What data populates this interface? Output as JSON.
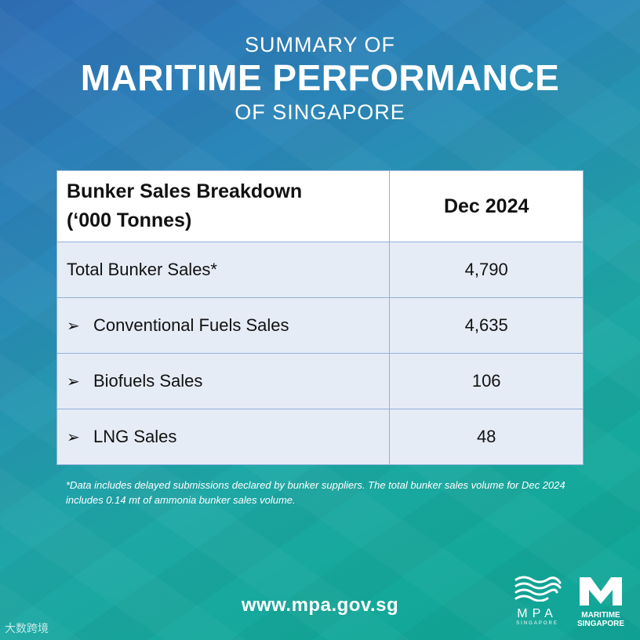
{
  "header": {
    "line1": "SUMMARY OF",
    "line2": "MARITIME PERFORMANCE",
    "line3": "OF SINGAPORE"
  },
  "table": {
    "header_label_line1": "Bunker Sales Breakdown",
    "header_label_line2": "(‘000 Tonnes)",
    "header_period": "Dec 2024",
    "rows": [
      {
        "label": "Total Bunker Sales*",
        "value": "4,790"
      },
      {
        "label": "Conventional Fuels Sales",
        "value": "4,635"
      },
      {
        "label": "Biofuels Sales",
        "value": "106"
      },
      {
        "label": "LNG Sales",
        "value": "48"
      }
    ]
  },
  "footnote": "*Data includes delayed submissions declared by bunker suppliers. The total bunker sales volume for Dec 2024 includes 0.14 mt of ammonia bunker sales volume.",
  "footer": {
    "url": "www.mpa.gov.sg",
    "mpa_logo_text": "MPA",
    "mpa_logo_sub": "SINGAPORE",
    "ms_logo_line1": "MARITIME",
    "ms_logo_line2": "SINGAPORE",
    "watermark": "大数跨境"
  },
  "colors": {
    "bg_top": "#2f6fb8",
    "bg_bottom": "#11a597",
    "table_border": "#8fb0d8",
    "row_bg": "#e6ecf6"
  },
  "icons": {
    "bullet": "arrow-bullet-icon",
    "mpa": "mpa-waves-logo",
    "ms": "maritime-singapore-m-logo"
  }
}
